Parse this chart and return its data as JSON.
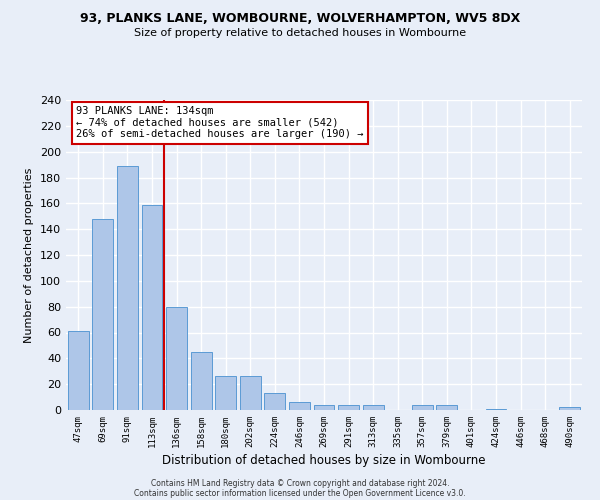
{
  "title1": "93, PLANKS LANE, WOMBOURNE, WOLVERHAMPTON, WV5 8DX",
  "title2": "Size of property relative to detached houses in Wombourne",
  "xlabel": "Distribution of detached houses by size in Wombourne",
  "ylabel": "Number of detached properties",
  "categories": [
    "47sqm",
    "69sqm",
    "91sqm",
    "113sqm",
    "136sqm",
    "158sqm",
    "180sqm",
    "202sqm",
    "224sqm",
    "246sqm",
    "269sqm",
    "291sqm",
    "313sqm",
    "335sqm",
    "357sqm",
    "379sqm",
    "401sqm",
    "424sqm",
    "446sqm",
    "468sqm",
    "490sqm"
  ],
  "values": [
    61,
    148,
    189,
    159,
    80,
    45,
    26,
    26,
    13,
    6,
    4,
    4,
    4,
    0,
    4,
    4,
    0,
    1,
    0,
    0,
    2
  ],
  "bar_color": "#aec6e8",
  "bar_edge_color": "#5b9bd5",
  "vline_x_index": 4,
  "vline_color": "#cc0000",
  "annotation_text": "93 PLANKS LANE: 134sqm\n← 74% of detached houses are smaller (542)\n26% of semi-detached houses are larger (190) →",
  "annotation_box_color": "#ffffff",
  "annotation_box_edge": "#cc0000",
  "ylim": [
    0,
    240
  ],
  "yticks": [
    0,
    20,
    40,
    60,
    80,
    100,
    120,
    140,
    160,
    180,
    200,
    220,
    240
  ],
  "background_color": "#e8eef8",
  "fig_background_color": "#e8eef8",
  "grid_color": "#ffffff",
  "footer1": "Contains HM Land Registry data © Crown copyright and database right 2024.",
  "footer2": "Contains public sector information licensed under the Open Government Licence v3.0."
}
